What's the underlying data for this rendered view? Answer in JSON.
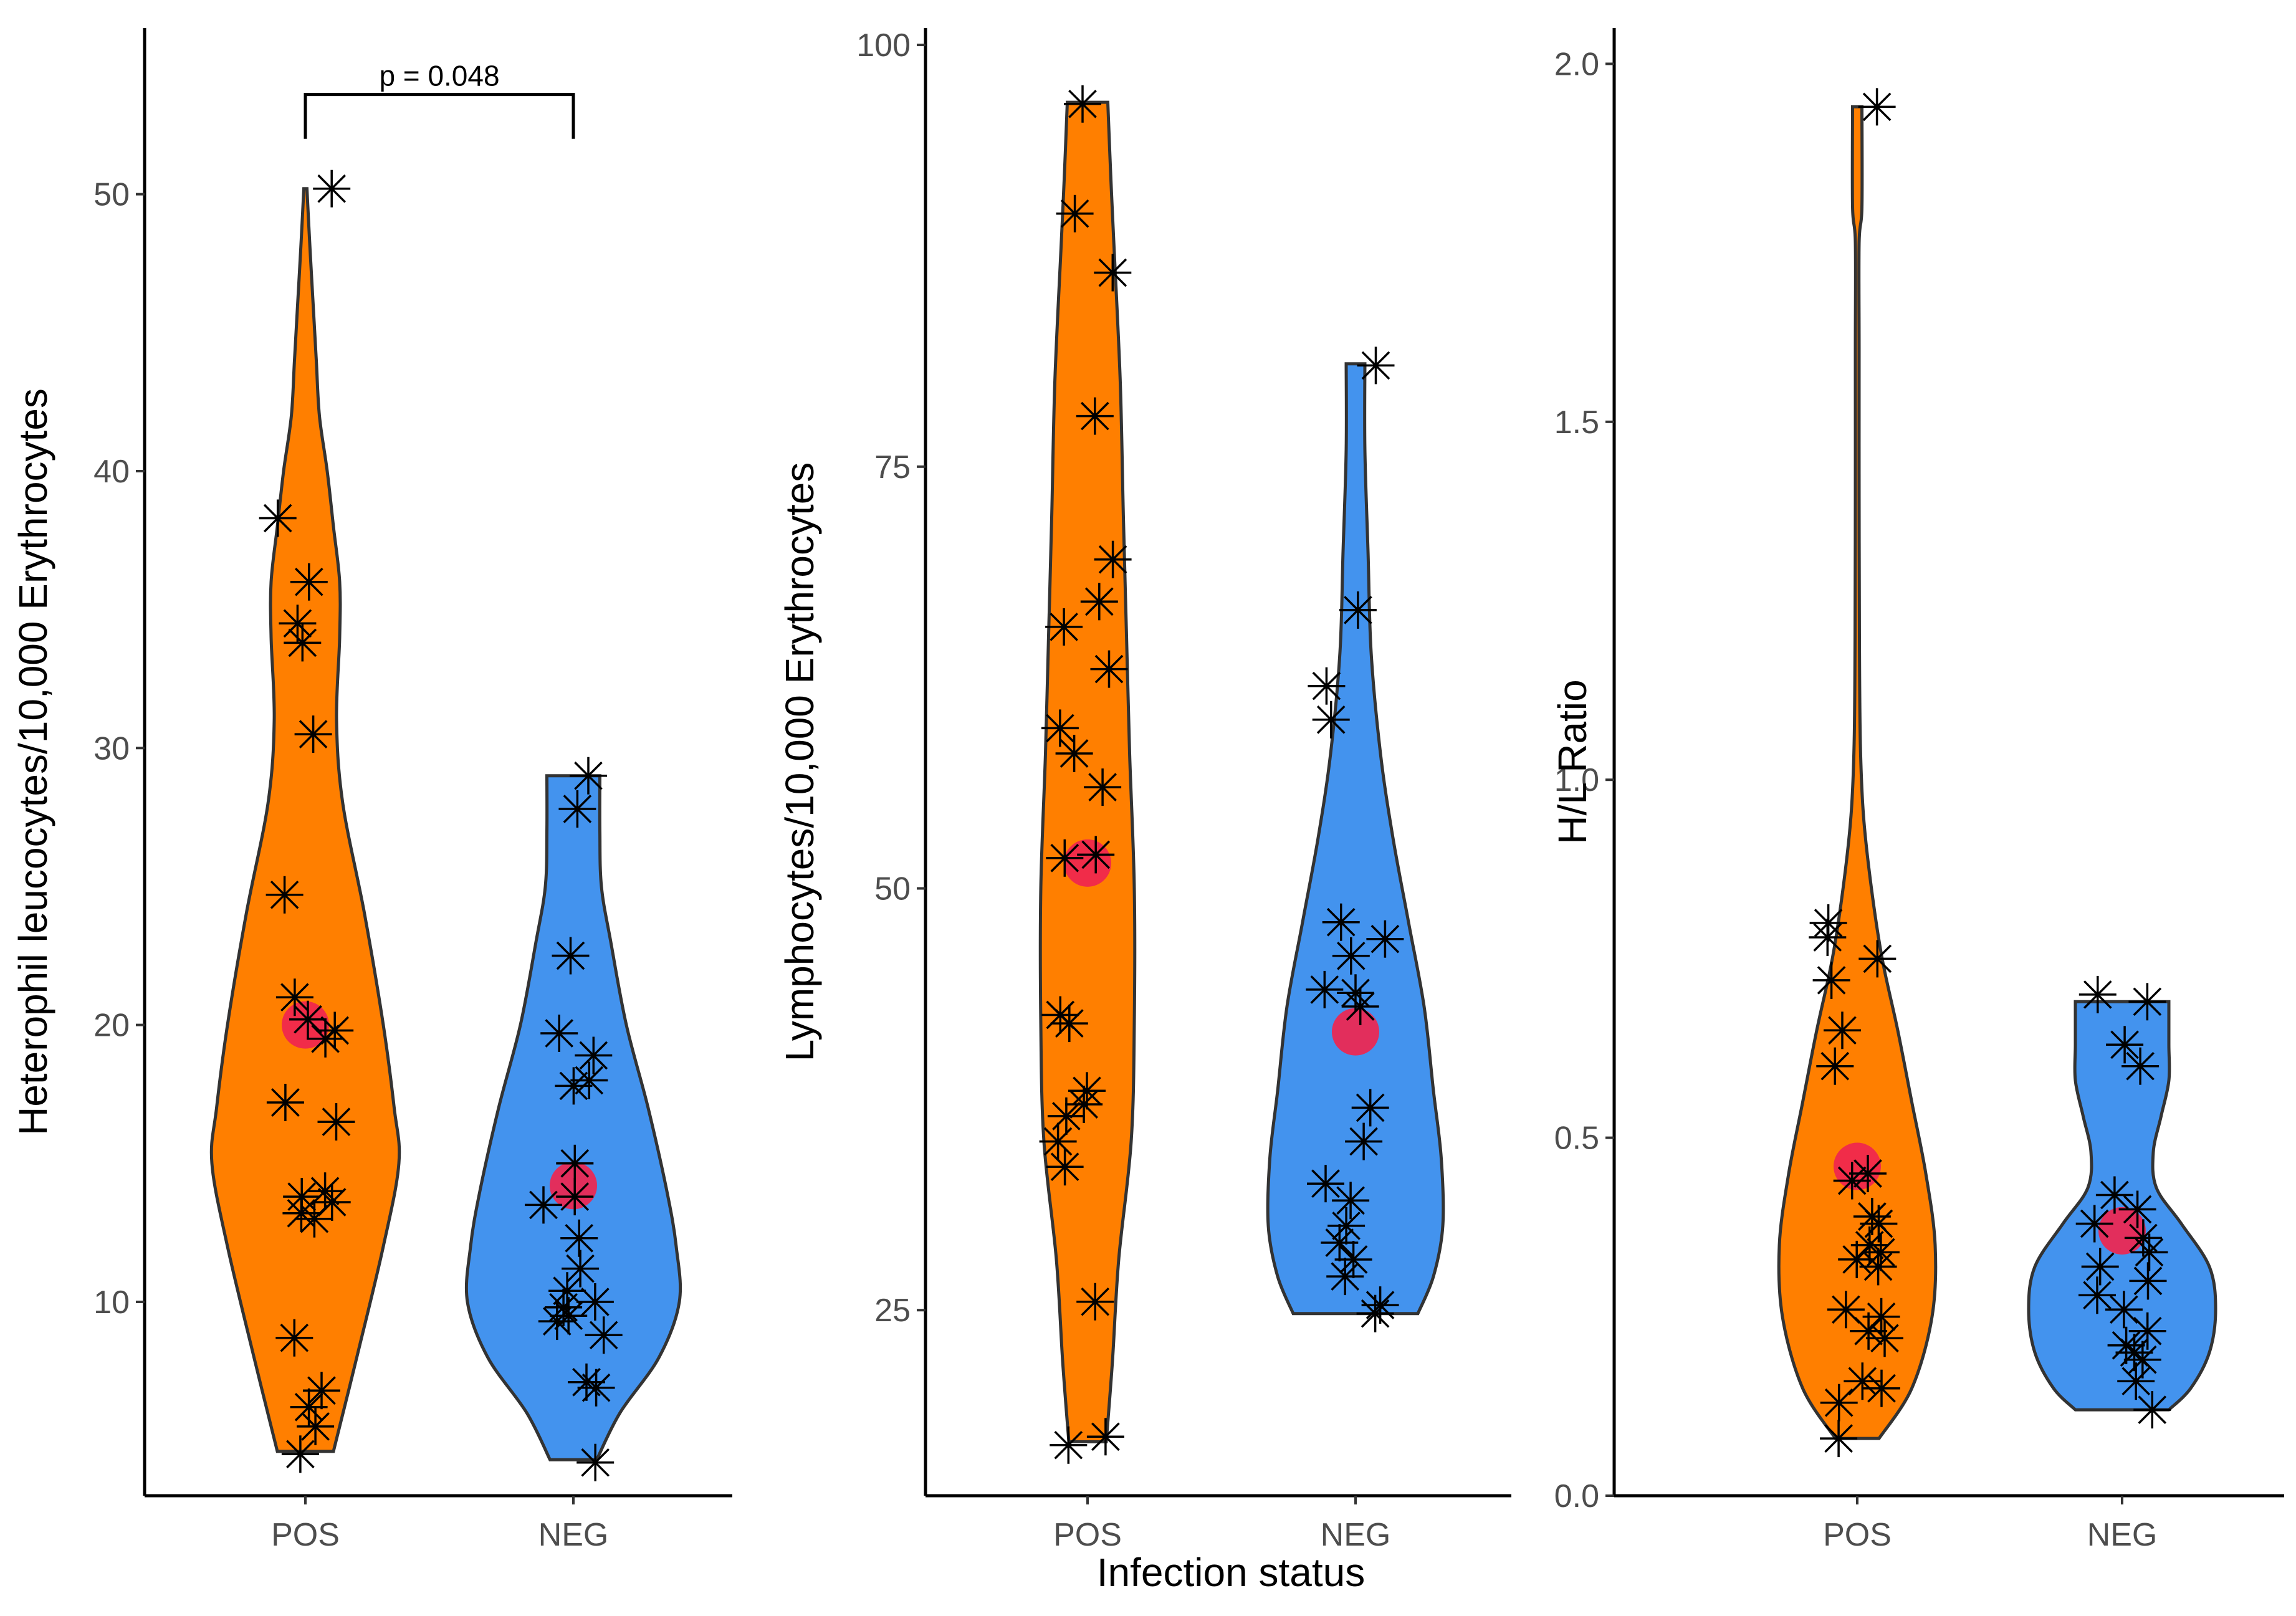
{
  "chart_data": [
    {
      "type": "violin",
      "ylabel": "Heterophil leucocytes/10,000 Erythrocytes",
      "xlabel": "",
      "categories": [
        "POS",
        "NEG"
      ],
      "ylim": [
        3,
        56
      ],
      "yticks": [
        10,
        20,
        30,
        40,
        50
      ],
      "colors": {
        "POS": "#FF7F00",
        "NEG": "#4393EE"
      },
      "mean_color": "#F0254F",
      "groups": [
        {
          "name": "POS",
          "points": [
            50.2,
            38.3,
            36.0,
            34.5,
            33.8,
            30.5,
            24.7,
            21.0,
            20.2,
            19.8,
            19.5,
            17.2,
            16.5,
            14.0,
            13.8,
            13.6,
            13.2,
            13.0,
            8.7,
            6.8,
            6.2,
            5.5,
            4.5
          ],
          "mean": 20.0,
          "violin": [
            [
              4.6,
              0.18
            ],
            [
              8,
              0.33
            ],
            [
              12,
              0.5
            ],
            [
              15,
              0.6
            ],
            [
              17,
              0.57
            ],
            [
              20,
              0.5
            ],
            [
              24,
              0.38
            ],
            [
              28,
              0.24
            ],
            [
              31,
              0.2
            ],
            [
              34,
              0.22
            ],
            [
              36,
              0.22
            ],
            [
              38,
              0.18
            ],
            [
              40,
              0.14
            ],
            [
              42,
              0.09
            ],
            [
              44,
              0.07
            ],
            [
              46,
              0.05
            ],
            [
              48,
              0.03
            ],
            [
              50.2,
              0.01
            ]
          ]
        },
        {
          "name": "NEG",
          "points": [
            29.0,
            27.8,
            22.5,
            19.7,
            18.9,
            18.0,
            17.8,
            15.0,
            13.8,
            13.5,
            12.3,
            11.2,
            10.4,
            10.0,
            9.8,
            9.5,
            9.3,
            8.8,
            7.1,
            6.9,
            4.2
          ],
          "mean": 14.2,
          "violin": [
            [
              4.3,
              0.15
            ],
            [
              6,
              0.3
            ],
            [
              8,
              0.55
            ],
            [
              10,
              0.68
            ],
            [
              12,
              0.66
            ],
            [
              14,
              0.6
            ],
            [
              17,
              0.48
            ],
            [
              20,
              0.34
            ],
            [
              23,
              0.24
            ],
            [
              25,
              0.18
            ],
            [
              27,
              0.17
            ],
            [
              29,
              0.17
            ]
          ]
        }
      ],
      "annotation": {
        "text": "p = 0.048",
        "from": "POS",
        "to": "NEG"
      }
    },
    {
      "type": "violin",
      "ylabel": "Lymphocytes/10,000 Erythrocytes",
      "xlabel": "Infection status",
      "categories": [
        "POS",
        "NEG"
      ],
      "ylim": [
        14,
        101
      ],
      "yticks": [
        25,
        50,
        75,
        100
      ],
      "colors": {
        "POS": "#FF7F00",
        "NEG": "#4393EE"
      },
      "mean_color": "#F0254F",
      "groups": [
        {
          "name": "POS",
          "points": [
            96.5,
            90.0,
            86.5,
            78.0,
            69.5,
            67.0,
            65.5,
            63.0,
            59.5,
            58.0,
            56.0,
            52.0,
            51.8,
            42.5,
            42.0,
            38.0,
            37.2,
            36.5,
            35.0,
            33.5,
            25.5,
            17.5,
            17.0
          ],
          "mean": 51.5,
          "violin": [
            [
              17.2,
              0.12
            ],
            [
              22,
              0.16
            ],
            [
              28,
              0.2
            ],
            [
              35,
              0.28
            ],
            [
              42,
              0.3
            ],
            [
              50,
              0.3
            ],
            [
              58,
              0.27
            ],
            [
              65,
              0.25
            ],
            [
              72,
              0.23
            ],
            [
              80,
              0.21
            ],
            [
              88,
              0.17
            ],
            [
              92,
              0.15
            ],
            [
              96.6,
              0.13
            ]
          ]
        },
        {
          "name": "NEG",
          "points": [
            81.0,
            66.5,
            62.0,
            60.0,
            48.0,
            47.0,
            46.0,
            44.0,
            43.8,
            43.0,
            37.0,
            35.0,
            32.5,
            31.5,
            30.0,
            29.0,
            28.0,
            27.0,
            25.3,
            24.8
          ],
          "mean": 41.5,
          "violin": [
            [
              24.8,
              0.4
            ],
            [
              27,
              0.5
            ],
            [
              30,
              0.56
            ],
            [
              34,
              0.55
            ],
            [
              38,
              0.5
            ],
            [
              43,
              0.44
            ],
            [
              48,
              0.34
            ],
            [
              53,
              0.24
            ],
            [
              58,
              0.16
            ],
            [
              64,
              0.1
            ],
            [
              70,
              0.08
            ],
            [
              76,
              0.06
            ],
            [
              81.1,
              0.06
            ]
          ]
        }
      ]
    },
    {
      "type": "violin",
      "ylabel": "H/L Ratio",
      "xlabel": "",
      "categories": [
        "POS",
        "NEG"
      ],
      "ylim": [
        0,
        2.05
      ],
      "yticks": [
        0.0,
        0.5,
        1.0,
        1.5,
        2.0
      ],
      "tick_labels": [
        "0.0",
        "0.5",
        "1.0",
        "1.5",
        "2.0"
      ],
      "colors": {
        "POS": "#FF7F00",
        "NEG": "#4393EE"
      },
      "mean_color": "#F0254F",
      "groups": [
        {
          "name": "POS",
          "points": [
            1.94,
            0.8,
            0.78,
            0.75,
            0.72,
            0.65,
            0.6,
            0.45,
            0.44,
            0.39,
            0.38,
            0.35,
            0.34,
            0.33,
            0.32,
            0.26,
            0.25,
            0.23,
            0.22,
            0.16,
            0.15,
            0.13,
            0.08
          ],
          "mean": 0.46,
          "violin": [
            [
              0.08,
              0.14
            ],
            [
              0.15,
              0.35
            ],
            [
              0.25,
              0.48
            ],
            [
              0.35,
              0.5
            ],
            [
              0.45,
              0.44
            ],
            [
              0.55,
              0.35
            ],
            [
              0.65,
              0.26
            ],
            [
              0.75,
              0.16
            ],
            [
              0.85,
              0.09
            ],
            [
              0.95,
              0.04
            ],
            [
              1.05,
              0.02
            ],
            [
              1.2,
              0.014
            ],
            [
              1.4,
              0.012
            ],
            [
              1.6,
              0.012
            ],
            [
              1.75,
              0.012
            ],
            [
              1.8,
              0.03
            ],
            [
              1.94,
              0.03
            ]
          ]
        },
        {
          "name": "NEG",
          "points": [
            0.7,
            0.69,
            0.63,
            0.6,
            0.42,
            0.4,
            0.38,
            0.36,
            0.34,
            0.32,
            0.3,
            0.28,
            0.26,
            0.23,
            0.21,
            0.2,
            0.19,
            0.16,
            0.12
          ],
          "mean": 0.37,
          "violin": [
            [
              0.12,
              0.3
            ],
            [
              0.15,
              0.44
            ],
            [
              0.2,
              0.56
            ],
            [
              0.26,
              0.6
            ],
            [
              0.32,
              0.56
            ],
            [
              0.38,
              0.38
            ],
            [
              0.43,
              0.22
            ],
            [
              0.48,
              0.2
            ],
            [
              0.53,
              0.25
            ],
            [
              0.58,
              0.3
            ],
            [
              0.63,
              0.3
            ],
            [
              0.69,
              0.3
            ]
          ]
        }
      ]
    }
  ]
}
